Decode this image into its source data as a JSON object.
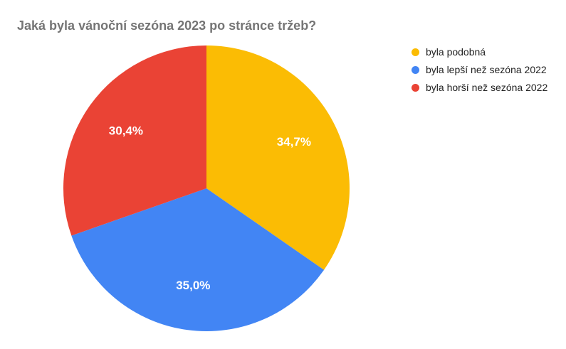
{
  "chart_data": {
    "type": "pie",
    "title": "Jaká byla vánoční sezóna 2023 po stránce tržeb?",
    "slices": [
      {
        "label": "byla podobná",
        "value": 34.7,
        "value_label": "34,7%",
        "color": "#FBBC04"
      },
      {
        "label": "byla lepší než sezóna 2022",
        "value": 35.0,
        "value_label": "35,0%",
        "color": "#4285F4"
      },
      {
        "label": "byla horší než sezóna 2022",
        "value": 30.4,
        "value_label": "30,4%",
        "color": "#EA4335"
      }
    ],
    "legend_position": "right"
  }
}
